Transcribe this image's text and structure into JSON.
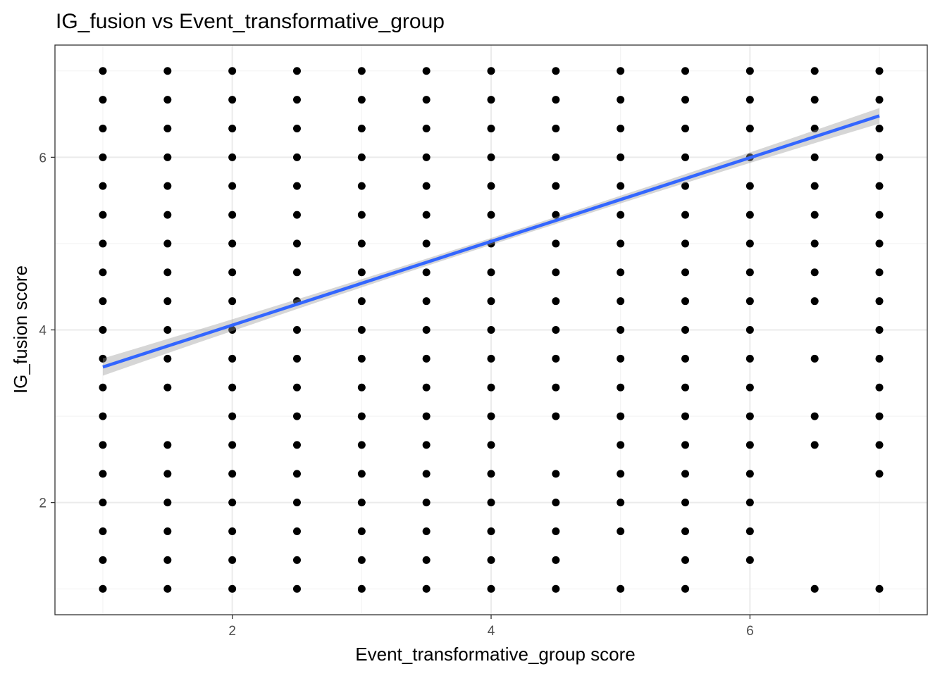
{
  "chart_data": {
    "type": "scatter",
    "title": "IG_fusion vs Event_transformative_group",
    "xlabel": "Event_transformative_group score",
    "ylabel": "IG_fusion score",
    "xlim": [
      0.63,
      7.37
    ],
    "ylim": [
      0.7,
      7.3
    ],
    "x_ticks": [
      "2",
      "4",
      "6"
    ],
    "y_ticks": [
      "2",
      "4",
      "6"
    ],
    "grid": true,
    "point_color": "#000000",
    "columns": [
      {
        "x": 1.0,
        "y": [
          7,
          6.667,
          6.333,
          6,
          5.667,
          5.333,
          5,
          4.667,
          4.333,
          4,
          3.667,
          3.333,
          3,
          2.667,
          2.333,
          2,
          1.667,
          1.333,
          1
        ]
      },
      {
        "x": 1.5,
        "y": [
          7,
          6.667,
          6.333,
          6,
          5.667,
          5.333,
          5,
          4.667,
          4.333,
          4,
          3.667,
          3.333,
          2.667,
          2.333,
          2,
          1.667,
          1.333,
          1
        ]
      },
      {
        "x": 2.0,
        "y": [
          7,
          6.667,
          6.333,
          6,
          5.667,
          5.333,
          5,
          4.667,
          4.333,
          4,
          3.667,
          3.333,
          3,
          2.667,
          2.333,
          2,
          1.667,
          1.333,
          1
        ]
      },
      {
        "x": 2.5,
        "y": [
          7,
          6.667,
          6.333,
          6,
          5.667,
          5.333,
          5,
          4.667,
          4.333,
          4,
          3.667,
          3.333,
          3,
          2.667,
          2.333,
          2,
          1.667,
          1.333,
          1
        ]
      },
      {
        "x": 3.0,
        "y": [
          7,
          6.667,
          6.333,
          6,
          5.667,
          5.333,
          5,
          4.667,
          4.333,
          4,
          3.667,
          3.333,
          3,
          2.667,
          2.333,
          2,
          1.667,
          1.333,
          1
        ]
      },
      {
        "x": 3.5,
        "y": [
          7,
          6.667,
          6.333,
          6,
          5.667,
          5.333,
          5,
          4.667,
          4.333,
          4,
          3.667,
          3.333,
          3,
          2.667,
          2.333,
          2,
          1.667,
          1.333,
          1
        ]
      },
      {
        "x": 4.0,
        "y": [
          7,
          6.667,
          6.333,
          6,
          5.667,
          5.333,
          5,
          4.667,
          4.333,
          4,
          3.667,
          3.333,
          3,
          2.667,
          2.333,
          2,
          1.667,
          1.333,
          1
        ]
      },
      {
        "x": 4.5,
        "y": [
          7,
          6.667,
          6.333,
          6,
          5.667,
          5.333,
          5,
          4.667,
          4.333,
          4,
          3.667,
          3.333,
          3,
          2.333,
          2,
          1.667,
          1.333,
          1
        ]
      },
      {
        "x": 5.0,
        "y": [
          7,
          6.667,
          6.333,
          6,
          5.667,
          5.333,
          5,
          4.667,
          4.333,
          4,
          3.667,
          3.333,
          3,
          2.667,
          2.333,
          2,
          1.667,
          1
        ]
      },
      {
        "x": 5.5,
        "y": [
          7,
          6.667,
          6.333,
          6,
          5.667,
          5.333,
          5,
          4.667,
          4.333,
          4,
          3.667,
          3.333,
          3,
          2.667,
          2.333,
          2,
          1.667,
          1.333,
          1
        ]
      },
      {
        "x": 6.0,
        "y": [
          7,
          6.667,
          6.333,
          6,
          5.667,
          5.333,
          5,
          4.667,
          4.333,
          4,
          3.667,
          3.333,
          3,
          2.667,
          2.333,
          2,
          1.667,
          1.333
        ]
      },
      {
        "x": 6.5,
        "y": [
          7,
          6.667,
          6.333,
          6,
          5.667,
          5.333,
          5,
          4.667,
          4.333,
          3.667,
          3,
          2.667,
          1
        ]
      },
      {
        "x": 7.0,
        "y": [
          7,
          6.667,
          6.333,
          6,
          5.667,
          5.333,
          5,
          4.667,
          4.333,
          4,
          3.667,
          3.333,
          3,
          2.667,
          2.333,
          1
        ]
      }
    ],
    "fit_line": {
      "color": "#3366FF",
      "band_color": "#999999",
      "x": [
        1.0,
        7.0
      ],
      "y": [
        3.57,
        6.48
      ],
      "ci_halfwidth_at_x": [
        [
          1.0,
          0.1
        ],
        [
          4.0,
          0.04
        ],
        [
          7.0,
          0.09
        ]
      ]
    }
  }
}
